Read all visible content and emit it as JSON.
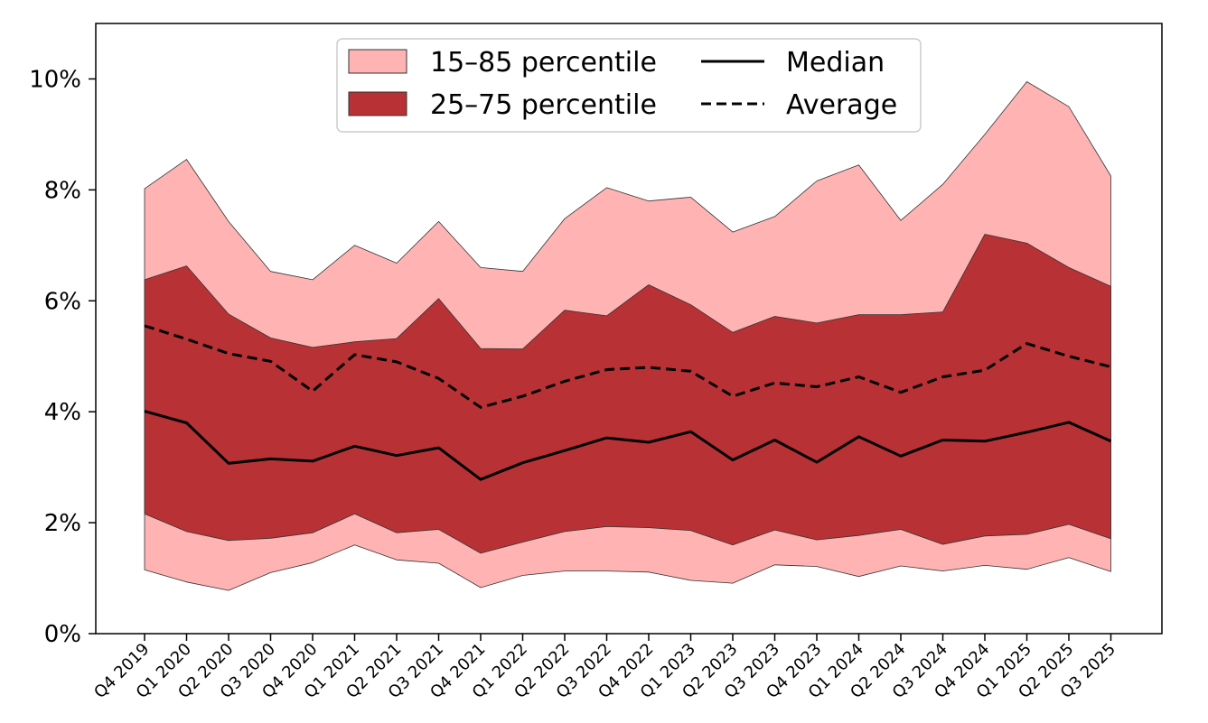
{
  "chart_data": {
    "type": "area",
    "title": "",
    "xlabel": "",
    "ylabel": "",
    "ylim": [
      0,
      11
    ],
    "y_unit": "%",
    "y_ticks": [
      "0%",
      "2%",
      "4%",
      "6%",
      "8%",
      "10%"
    ],
    "y_tick_values": [
      0,
      2,
      4,
      6,
      8,
      10
    ],
    "grid": false,
    "legend_placement": "top-center",
    "categories": [
      "Q4 2019",
      "Q1 2020",
      "Q2 2020",
      "Q3 2020",
      "Q4 2020",
      "Q1 2021",
      "Q2 2021",
      "Q3 2021",
      "Q4 2021",
      "Q1 2022",
      "Q2 2022",
      "Q3 2022",
      "Q4 2022",
      "Q1 2023",
      "Q2 2023",
      "Q3 2023",
      "Q4 2023",
      "Q1 2024",
      "Q2 2024",
      "Q3 2024",
      "Q4 2024",
      "Q1 2025",
      "Q2 2025",
      "Q3 2025"
    ],
    "bands": [
      {
        "name": "15–85 percentile",
        "color": "#ffb3b3",
        "lower": [
          1.15,
          0.93,
          0.78,
          1.1,
          1.28,
          1.6,
          1.33,
          1.27,
          0.83,
          1.05,
          1.13,
          1.13,
          1.11,
          0.96,
          0.91,
          1.24,
          1.21,
          1.03,
          1.22,
          1.13,
          1.23,
          1.16,
          1.37,
          1.12
        ],
        "upper": [
          8.02,
          8.55,
          7.43,
          6.53,
          6.38,
          7.0,
          6.68,
          7.43,
          6.6,
          6.53,
          7.48,
          8.04,
          7.8,
          7.87,
          7.24,
          7.52,
          8.16,
          8.45,
          7.45,
          8.1,
          9.0,
          9.95,
          9.5,
          8.25
        ]
      },
      {
        "name": "25–75 percentile",
        "color": "#b83235",
        "lower": [
          2.16,
          1.84,
          1.68,
          1.72,
          1.82,
          2.16,
          1.82,
          1.88,
          1.45,
          1.65,
          1.84,
          1.93,
          1.91,
          1.86,
          1.6,
          1.87,
          1.69,
          1.77,
          1.88,
          1.61,
          1.76,
          1.79,
          1.97,
          1.71
        ],
        "upper": [
          6.38,
          6.63,
          5.76,
          5.33,
          5.16,
          5.26,
          5.32,
          6.04,
          5.14,
          5.13,
          5.83,
          5.73,
          6.29,
          5.93,
          5.43,
          5.72,
          5.6,
          5.75,
          5.75,
          5.8,
          7.2,
          7.04,
          6.6,
          6.26
        ]
      }
    ],
    "series": [
      {
        "name": "Median",
        "style": "solid",
        "color": "#000000",
        "values": [
          4.01,
          3.8,
          3.07,
          3.15,
          3.11,
          3.38,
          3.21,
          3.35,
          2.78,
          3.08,
          3.3,
          3.53,
          3.45,
          3.64,
          3.13,
          3.49,
          3.09,
          3.55,
          3.2,
          3.49,
          3.47,
          3.63,
          3.81,
          3.47
        ]
      },
      {
        "name": "Average",
        "style": "dashed",
        "color": "#000000",
        "values": [
          5.55,
          5.31,
          5.05,
          4.91,
          4.37,
          5.03,
          4.9,
          4.6,
          4.08,
          4.28,
          4.55,
          4.76,
          4.8,
          4.73,
          4.28,
          4.52,
          4.45,
          4.63,
          4.35,
          4.63,
          4.75,
          5.23,
          5.0,
          4.81
        ]
      }
    ]
  }
}
